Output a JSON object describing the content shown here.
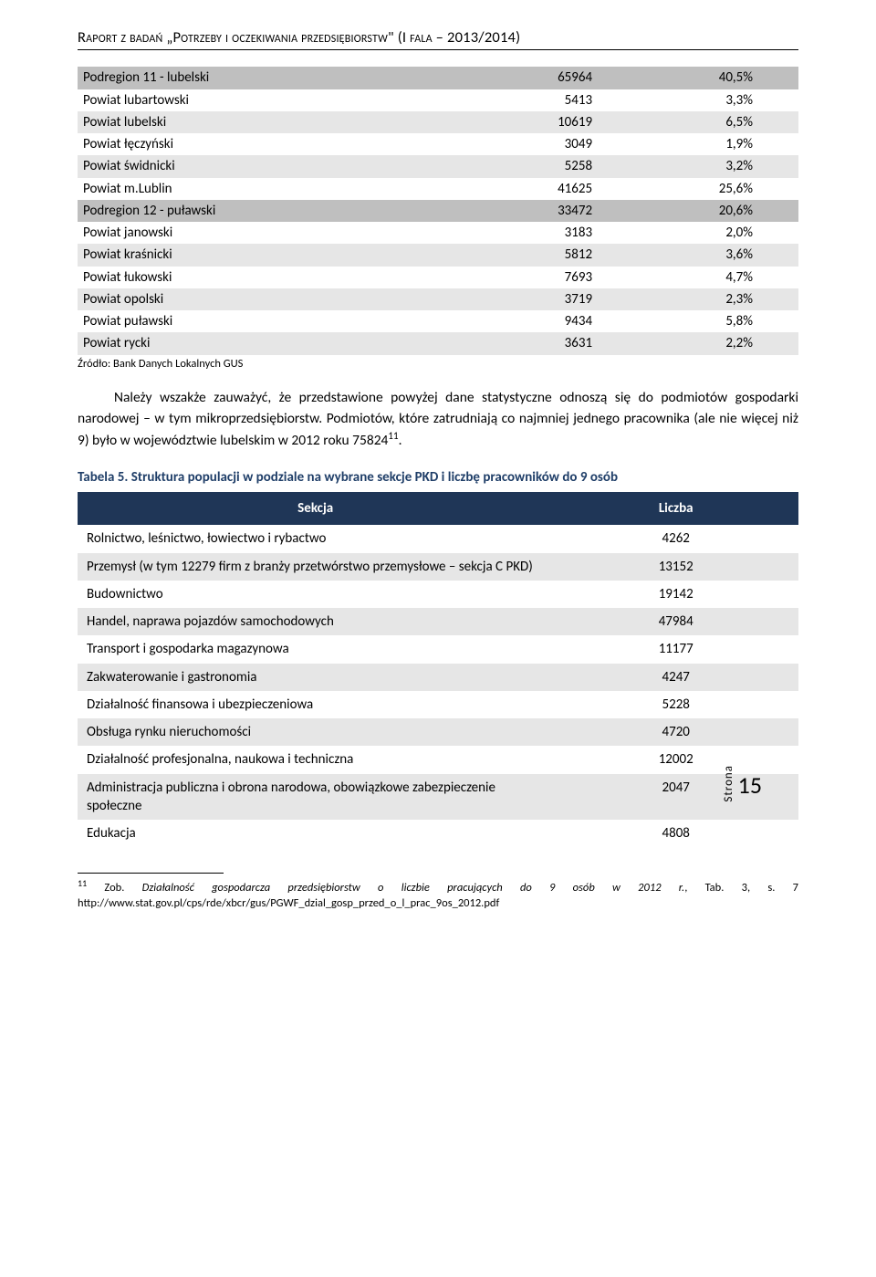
{
  "header": "Raport z badań „Potrzeby i oczekiwania przedsiębiorstw\" (I fala – 2013/2014)",
  "table1_rows": [
    {
      "cells": [
        "Podregion 11 - lubelski",
        "65964",
        "40,5%"
      ],
      "cls": "subregion"
    },
    {
      "cells": [
        "Powiat lubartowski",
        "5413",
        "3,3%"
      ],
      "cls": ""
    },
    {
      "cells": [
        "Powiat lubelski",
        "10619",
        "6,5%"
      ],
      "cls": "row-alt"
    },
    {
      "cells": [
        "Powiat łęczyński",
        "3049",
        "1,9%"
      ],
      "cls": ""
    },
    {
      "cells": [
        "Powiat świdnicki",
        "5258",
        "3,2%"
      ],
      "cls": "row-alt"
    },
    {
      "cells": [
        "Powiat m.Lublin",
        "41625",
        "25,6%"
      ],
      "cls": ""
    },
    {
      "cells": [
        "Podregion 12 - puławski",
        "33472",
        "20,6%"
      ],
      "cls": "subregion"
    },
    {
      "cells": [
        "Powiat janowski",
        "3183",
        "2,0%"
      ],
      "cls": ""
    },
    {
      "cells": [
        "Powiat kraśnicki",
        "5812",
        "3,6%"
      ],
      "cls": "row-alt"
    },
    {
      "cells": [
        "Powiat łukowski",
        "7693",
        "4,7%"
      ],
      "cls": ""
    },
    {
      "cells": [
        "Powiat opolski",
        "3719",
        "2,3%"
      ],
      "cls": "row-alt"
    },
    {
      "cells": [
        "Powiat puławski",
        "9434",
        "5,8%"
      ],
      "cls": ""
    },
    {
      "cells": [
        "Powiat rycki",
        "3631",
        "2,2%"
      ],
      "cls": "row-alt"
    }
  ],
  "source": "Źródło: Bank Danych Lokalnych GUS",
  "para1_a": "Należy wszakże zauważyć, że przedstawione powyżej dane statystyczne odnoszą się do podmiotów gospodarki narodowej – w tym mikroprzedsiębiorstw. Podmiotów, które zatrudniają co najmniej jednego pracownika (ale nie więcej niż 9) było w województwie lubelskim w 2012 roku 75824",
  "para1_sup": "11",
  "para1_b": ".",
  "table2_caption": "Tabela 5. Struktura populacji w podziale na wybrane sekcje PKD i liczbę pracowników do 9 osób",
  "table2_head": [
    "Sekcja",
    "Liczba"
  ],
  "table2_rows": [
    {
      "cells": [
        "Rolnictwo, leśnictwo, łowiectwo i rybactwo",
        "4262"
      ],
      "cls": ""
    },
    {
      "cells": [
        "Przemysł (w tym 12279 firm z branży przetwórstwo przemysłowe – sekcja C PKD)",
        "13152"
      ],
      "cls": "r-alt"
    },
    {
      "cells": [
        "Budownictwo",
        "19142"
      ],
      "cls": ""
    },
    {
      "cells": [
        "Handel, naprawa pojazdów samochodowych",
        "47984"
      ],
      "cls": "r-alt"
    },
    {
      "cells": [
        "Transport i gospodarka magazynowa",
        "11177"
      ],
      "cls": ""
    },
    {
      "cells": [
        "Zakwaterowanie i gastronomia",
        "4247"
      ],
      "cls": "r-alt"
    },
    {
      "cells": [
        "Działalność finansowa i ubezpieczeniowa",
        "5228"
      ],
      "cls": ""
    },
    {
      "cells": [
        "Obsługa rynku nieruchomości",
        "4720"
      ],
      "cls": "r-alt"
    },
    {
      "cells": [
        "Działalność profesjonalna, naukowa i techniczna",
        "12002"
      ],
      "cls": ""
    },
    {
      "cells": [
        "Administracja publiczna i obrona narodowa, obowiązkowe zabezpieczenie społeczne",
        "2047"
      ],
      "cls": "r-alt"
    },
    {
      "cells": [
        "Edukacja",
        "4808"
      ],
      "cls": ""
    }
  ],
  "side": {
    "label": "Strona",
    "page": "15"
  },
  "footnote_sup": "11",
  "footnote_a": " Zob. ",
  "footnote_it": "Działalność gospodarcza przedsiębiorstw o liczbie pracujących do 9 osób w 2012 r.",
  "footnote_b": ", Tab. 3, s. 7 http://www.stat.gov.pl/cps/rde/xbcr/gus/PGWF_dzial_gosp_przed_o_l_prac_9os_2012.pdf"
}
